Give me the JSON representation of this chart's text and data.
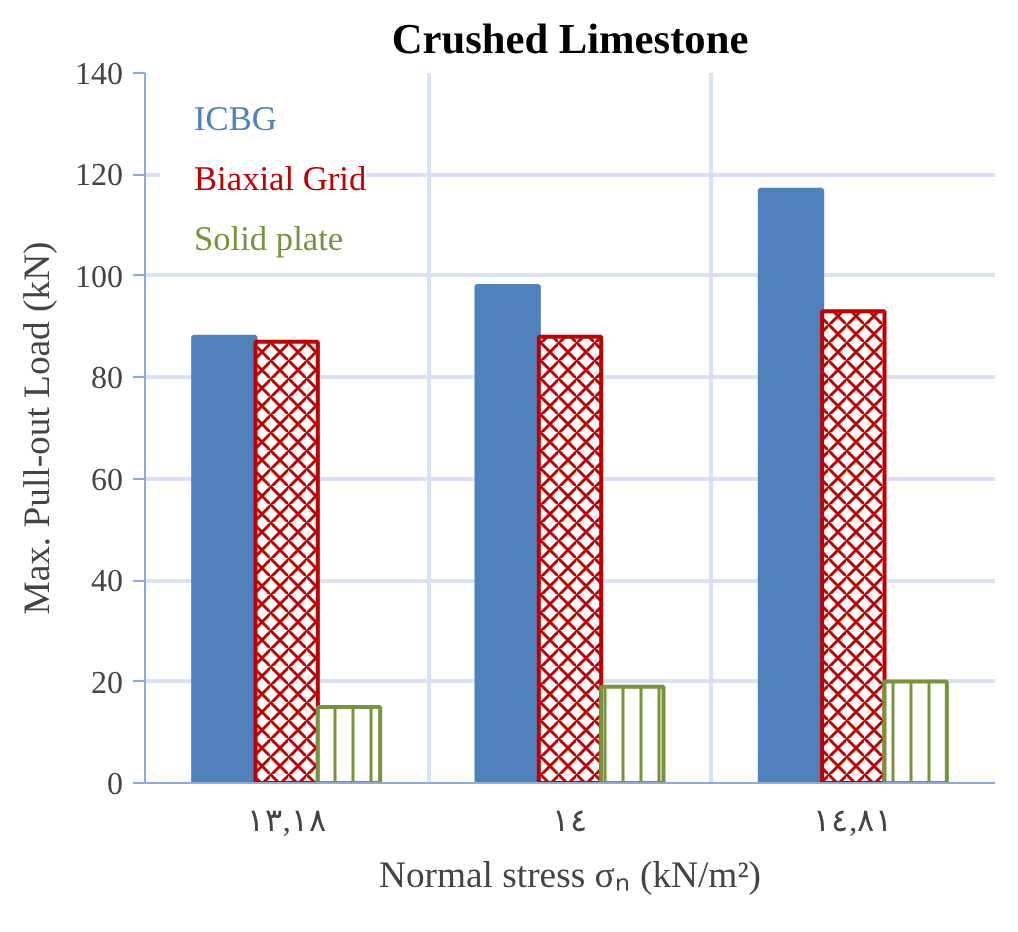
{
  "chart_data": {
    "type": "bar",
    "title": "Crushed Limestone",
    "xlabel": "Normal stress σₙ (kN/m²)",
    "ylabel": "Max. Pull-out Load (kN)",
    "categories": [
      "١٣,١٨",
      "١٤",
      "١٤,٨١"
    ],
    "series": [
      {
        "name": "ICBG",
        "color": "#4f81bd",
        "values": [
          88,
          98,
          117
        ]
      },
      {
        "name": "Biaxial Grid",
        "color": "#c00000",
        "values": [
          87,
          88,
          93
        ]
      },
      {
        "name": "Solid plate",
        "color": "#77933c",
        "values": [
          15,
          19,
          20
        ]
      }
    ],
    "ylim": [
      0,
      140
    ],
    "yticks": [
      0,
      20,
      40,
      60,
      80,
      100,
      120,
      140
    ],
    "grid": true,
    "legend": "top left"
  }
}
